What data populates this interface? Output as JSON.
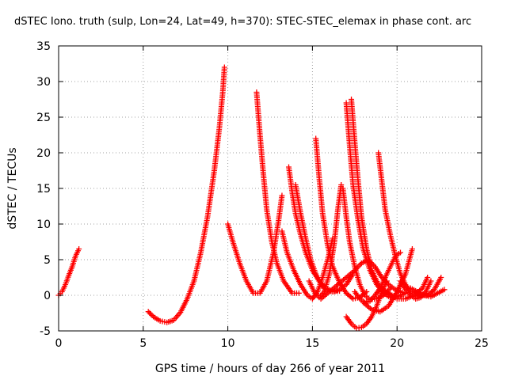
{
  "chart_data": {
    "type": "scatter",
    "title": "dSTEC Iono. truth (sulp, Lon=24, Lat=49, h=370): STEC-STEC_elemax in phase cont. arc",
    "xlabel": "GPS time / hours of day 266 of year 2011",
    "ylabel": "dSTEC  / TECUs",
    "xlim": [
      0,
      25
    ],
    "ylim": [
      -5,
      35
    ],
    "x_ticks": [
      "0",
      "5",
      "10",
      "15",
      "20",
      "25"
    ],
    "y_ticks": [
      "-5",
      "0",
      "5",
      "10",
      "15",
      "20",
      "25",
      "30",
      "35"
    ],
    "grid": true,
    "marker": "+",
    "marker_color": "#ff0000",
    "series": [
      {
        "x": [
          0.0,
          0.2,
          0.4,
          0.6,
          0.8,
          1.0,
          1.2
        ],
        "y": [
          0.0,
          0.5,
          1.5,
          2.8,
          4.0,
          5.5,
          6.5
        ]
      },
      {
        "x": [
          5.3,
          5.6,
          6.0,
          6.4,
          6.8,
          7.2,
          7.6,
          8.0,
          8.4,
          8.8,
          9.2,
          9.5,
          9.7,
          9.8
        ],
        "y": [
          -2.3,
          -3.0,
          -3.6,
          -3.8,
          -3.5,
          -2.4,
          -0.5,
          2.0,
          6.0,
          11.0,
          17.5,
          23.5,
          28.5,
          32.0
        ]
      },
      {
        "x": [
          10.0,
          10.3,
          10.7,
          11.1,
          11.5,
          11.9,
          12.3,
          12.7,
          13.0,
          13.2
        ],
        "y": [
          10.0,
          7.5,
          4.5,
          2.0,
          0.3,
          0.3,
          2.0,
          6.0,
          10.5,
          14.0
        ]
      },
      {
        "x": [
          11.7,
          11.9,
          12.1,
          12.3,
          12.6,
          12.9,
          13.3,
          13.8,
          14.2
        ],
        "y": [
          28.5,
          22.5,
          17.0,
          12.0,
          7.5,
          4.5,
          2.0,
          0.3,
          0.3
        ]
      },
      {
        "x": [
          13.2,
          13.5,
          13.9,
          14.3,
          14.7,
          15.0,
          15.3,
          15.6,
          15.9,
          16.2
        ],
        "y": [
          9.0,
          6.0,
          3.5,
          1.5,
          0.0,
          -0.5,
          0.5,
          2.5,
          5.0,
          8.0
        ]
      },
      {
        "x": [
          13.6,
          13.8,
          14.0,
          14.3,
          14.6,
          15.0,
          15.4,
          15.8,
          16.2,
          16.6
        ],
        "y": [
          18.0,
          14.5,
          11.5,
          8.5,
          6.0,
          3.5,
          2.0,
          1.0,
          0.5,
          0.6
        ]
      },
      {
        "x": [
          14.0,
          14.3,
          14.6,
          14.9,
          15.2,
          15.5,
          15.8,
          16.2,
          16.6,
          17.0,
          17.4
        ],
        "y": [
          15.5,
          11.5,
          8.0,
          5.0,
          3.0,
          1.5,
          0.8,
          0.5,
          0.8,
          1.5,
          3.0
        ]
      },
      {
        "x": [
          15.2,
          15.4,
          15.6,
          15.9,
          16.2,
          16.6,
          17.0,
          17.4,
          17.8,
          18.2
        ],
        "y": [
          22.0,
          16.5,
          11.5,
          7.0,
          4.0,
          1.8,
          0.3,
          -0.5,
          -0.3,
          0.5
        ]
      },
      {
        "x": [
          14.8,
          15.1,
          15.4,
          15.7,
          16.0,
          16.3,
          16.5,
          16.7
        ],
        "y": [
          2.0,
          0.5,
          -0.3,
          0.5,
          3.0,
          7.5,
          12.0,
          15.5
        ]
      },
      {
        "x": [
          16.8,
          17.0,
          17.2,
          17.5,
          17.8,
          18.1,
          18.4,
          18.8,
          19.2,
          19.6
        ],
        "y": [
          15.0,
          11.0,
          7.5,
          4.0,
          1.5,
          0.0,
          -0.6,
          -0.5,
          0.0,
          1.0
        ]
      },
      {
        "x": [
          17.0,
          17.2,
          17.4,
          17.7,
          18.0,
          18.4,
          18.8,
          19.2,
          19.6,
          20.0,
          20.5
        ],
        "y": [
          27.0,
          21.0,
          15.5,
          10.5,
          6.5,
          3.5,
          1.5,
          0.3,
          -0.3,
          -0.2,
          0.3
        ]
      },
      {
        "x": [
          17.3,
          17.5,
          17.7,
          17.9,
          18.2,
          18.5,
          18.9,
          19.3,
          19.7
        ],
        "y": [
          27.5,
          21.5,
          16.0,
          11.0,
          6.5,
          3.5,
          1.5,
          0.5,
          0.0
        ]
      },
      {
        "x": [
          15.5,
          16.0,
          16.5,
          17.0,
          17.5,
          17.9,
          18.3,
          18.7,
          19.1,
          19.5,
          19.9,
          20.3
        ],
        "y": [
          -0.5,
          0.5,
          1.5,
          2.5,
          3.5,
          4.5,
          5.0,
          4.0,
          2.5,
          1.5,
          0.8,
          0.4
        ]
      },
      {
        "x": [
          17.0,
          17.3,
          17.6,
          17.9,
          18.2,
          18.5,
          18.8,
          19.1,
          19.4
        ],
        "y": [
          -3.0,
          -4.0,
          -4.6,
          -4.5,
          -4.0,
          -3.0,
          -1.5,
          0.5,
          2.0
        ]
      },
      {
        "x": [
          17.5,
          17.8,
          18.1,
          18.4,
          18.7,
          19.0,
          19.3,
          19.6,
          19.9,
          20.2
        ],
        "y": [
          0.5,
          -0.5,
          -1.0,
          -0.8,
          0.0,
          1.0,
          2.5,
          4.0,
          5.5,
          6.0
        ]
      },
      {
        "x": [
          18.9,
          19.1,
          19.3,
          19.6,
          19.9,
          20.2,
          20.5,
          20.8,
          21.1,
          21.4,
          21.7
        ],
        "y": [
          20.0,
          16.0,
          12.0,
          8.5,
          5.5,
          3.0,
          1.5,
          0.5,
          0.0,
          -0.2,
          0.3
        ]
      },
      {
        "x": [
          18.0,
          18.5,
          19.0,
          19.5,
          20.0,
          20.5,
          20.9
        ],
        "y": [
          -1.0,
          -2.0,
          -2.3,
          -1.5,
          0.5,
          3.0,
          6.5
        ]
      },
      {
        "x": [
          19.0,
          19.5,
          20.0,
          20.5,
          21.0,
          21.5,
          21.8
        ],
        "y": [
          1.0,
          0.3,
          -0.5,
          -0.5,
          0.0,
          1.0,
          2.5
        ]
      },
      {
        "x": [
          20.2,
          20.5,
          20.8,
          21.1,
          21.4,
          21.7,
          22.0
        ],
        "y": [
          2.0,
          0.8,
          0.0,
          -0.5,
          -0.3,
          0.5,
          2.0
        ]
      },
      {
        "x": [
          20.8,
          21.2,
          21.6,
          22.0,
          22.4,
          22.8
        ],
        "y": [
          1.0,
          0.5,
          0.0,
          -0.2,
          0.3,
          0.8
        ]
      },
      {
        "x": [
          21.0,
          21.4,
          21.8,
          22.2,
          22.6
        ],
        "y": [
          0.5,
          0.0,
          0.0,
          0.8,
          2.5
        ]
      }
    ]
  }
}
